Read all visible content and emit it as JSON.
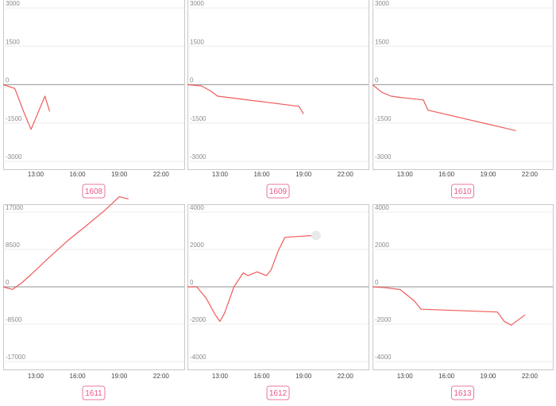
{
  "chart_data": [
    {
      "type": "line",
      "label": "1608",
      "x_ticks": [
        "13:00",
        "16:00",
        "19:00",
        "22:00"
      ],
      "y_ticks": [
        "3000",
        "1500",
        "0",
        "-1500",
        "-3000"
      ],
      "ylim": [
        -3000,
        3000
      ],
      "xlim": [
        "10:40",
        "23:40"
      ],
      "grid": true,
      "series": [
        {
          "x": [
            "10:40",
            "11:30",
            "12:10",
            "12:40",
            "13:40",
            "14:00"
          ],
          "y": [
            0,
            -150,
            -1100,
            -1750,
            -450,
            -1050
          ]
        }
      ]
    },
    {
      "type": "line",
      "label": "1609",
      "x_ticks": [
        "13:00",
        "16:00",
        "19:00",
        "22:00"
      ],
      "y_ticks": [
        "3000",
        "1500",
        "0",
        "-1500",
        "-3000"
      ],
      "ylim": [
        -3000,
        3000
      ],
      "xlim": [
        "10:40",
        "23:40"
      ],
      "grid": true,
      "series": [
        {
          "x": [
            "10:40",
            "11:40",
            "12:20",
            "12:50",
            "18:40",
            "19:00"
          ],
          "y": [
            0,
            -50,
            -250,
            -450,
            -850,
            -1150
          ]
        }
      ]
    },
    {
      "type": "line",
      "label": "1610",
      "x_ticks": [
        "13:00",
        "16:00",
        "19:00",
        "22:00"
      ],
      "y_ticks": [
        "3000",
        "1500",
        "0",
        "-1500",
        "-3000"
      ],
      "ylim": [
        -3000,
        3000
      ],
      "xlim": [
        "10:40",
        "23:40"
      ],
      "grid": true,
      "series": [
        {
          "x": [
            "10:40",
            "11:20",
            "12:00",
            "12:40",
            "14:20",
            "14:40",
            "21:00"
          ],
          "y": [
            0,
            -300,
            -450,
            -500,
            -600,
            -1000,
            -1800
          ]
        }
      ]
    },
    {
      "type": "line",
      "label": "1611",
      "x_ticks": [
        "13:00",
        "16:00",
        "19:00",
        "22:00"
      ],
      "y_ticks": [
        "17000",
        "8500",
        "0",
        "-8500",
        "-17000"
      ],
      "ylim": [
        -17000,
        17000
      ],
      "xlim": [
        "10:40",
        "23:40"
      ],
      "grid": true,
      "series": [
        {
          "x": [
            "10:40",
            "11:20",
            "12:00",
            "12:40",
            "14:00",
            "15:20",
            "16:40",
            "18:00",
            "19:00",
            "19:40"
          ],
          "y": [
            0,
            -600,
            900,
            2800,
            6800,
            10600,
            14000,
            17500,
            20500,
            20000
          ]
        }
      ]
    },
    {
      "type": "line",
      "label": "1612",
      "x_ticks": [
        "13:00",
        "16:00",
        "19:00",
        "22:00"
      ],
      "y_ticks": [
        "4000",
        "2000",
        "0",
        "-2000",
        "-4000"
      ],
      "ylim": [
        -4000,
        4000
      ],
      "xlim": [
        "10:40",
        "23:40"
      ],
      "grid": true,
      "series": [
        {
          "x": [
            "10:40",
            "11:20",
            "12:00",
            "12:40",
            "13:00",
            "13:20",
            "14:00",
            "14:40",
            "15:00",
            "15:40",
            "16:20",
            "16:40",
            "17:10",
            "17:40",
            "19:40"
          ],
          "y": [
            0,
            0,
            -600,
            -1500,
            -1850,
            -1400,
            0,
            750,
            600,
            800,
            600,
            900,
            1900,
            2650,
            2750
          ]
        }
      ]
    },
    {
      "type": "line",
      "label": "1613",
      "x_ticks": [
        "13:00",
        "16:00",
        "19:00",
        "22:00"
      ],
      "y_ticks": [
        "4000",
        "2000",
        "0",
        "-2000",
        "-4000"
      ],
      "ylim": [
        -4000,
        4000
      ],
      "xlim": [
        "10:40",
        "23:40"
      ],
      "grid": true,
      "series": [
        {
          "x": [
            "10:40",
            "11:40",
            "12:40",
            "13:20",
            "13:40",
            "14:10",
            "19:40",
            "20:10",
            "20:40",
            "21:40"
          ],
          "y": [
            0,
            -50,
            -150,
            -550,
            -750,
            -1200,
            -1350,
            -1850,
            -2050,
            -1500
          ]
        }
      ]
    }
  ]
}
